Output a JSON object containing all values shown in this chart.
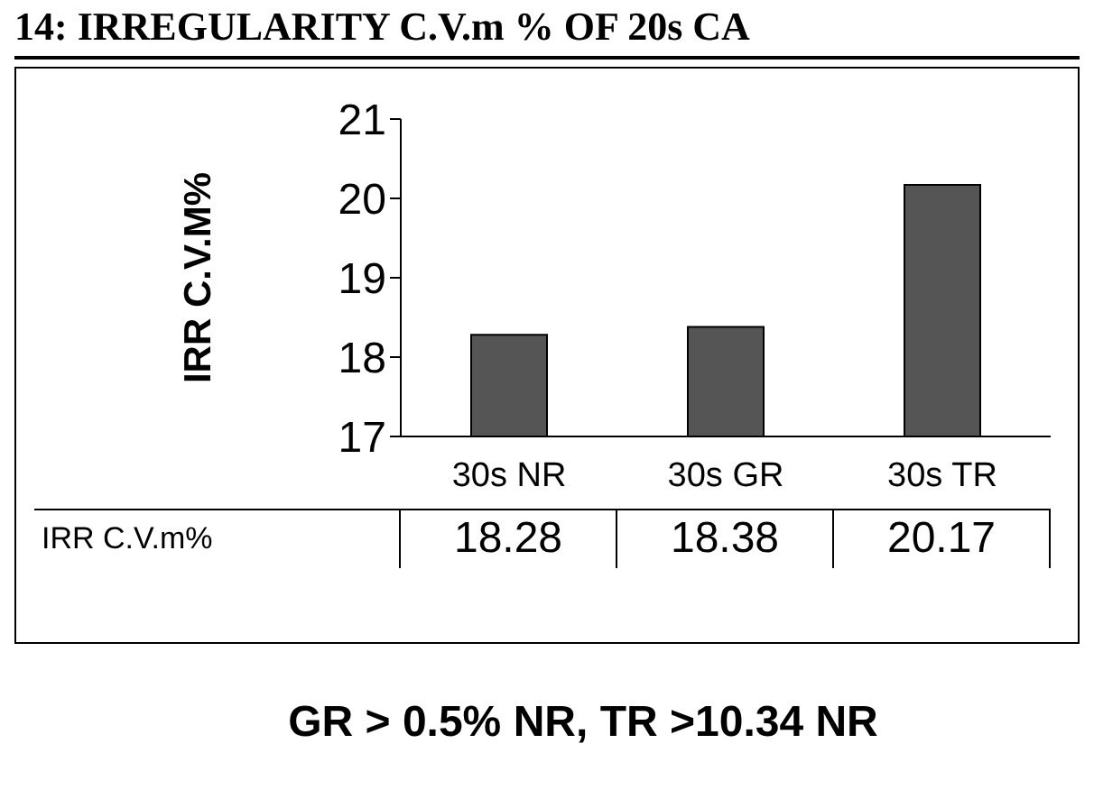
{
  "chart_data": {
    "type": "bar",
    "title": "14: IRREGULARITY C.V.m % OF 20s CA",
    "ylabel": "IRR C.V.M%",
    "categories": [
      "30s NR",
      "30s GR",
      "30s TR"
    ],
    "series": [
      {
        "name": "IRR C.V.m%",
        "color": "#555555",
        "values": [
          18.28,
          18.38,
          20.17
        ]
      }
    ],
    "ylim": [
      17,
      21
    ],
    "yticks": [
      17,
      18,
      19,
      20,
      21
    ],
    "data_labels": true,
    "annotations": [
      "GR > 0.5% NR, TR >10.34 NR"
    ]
  }
}
